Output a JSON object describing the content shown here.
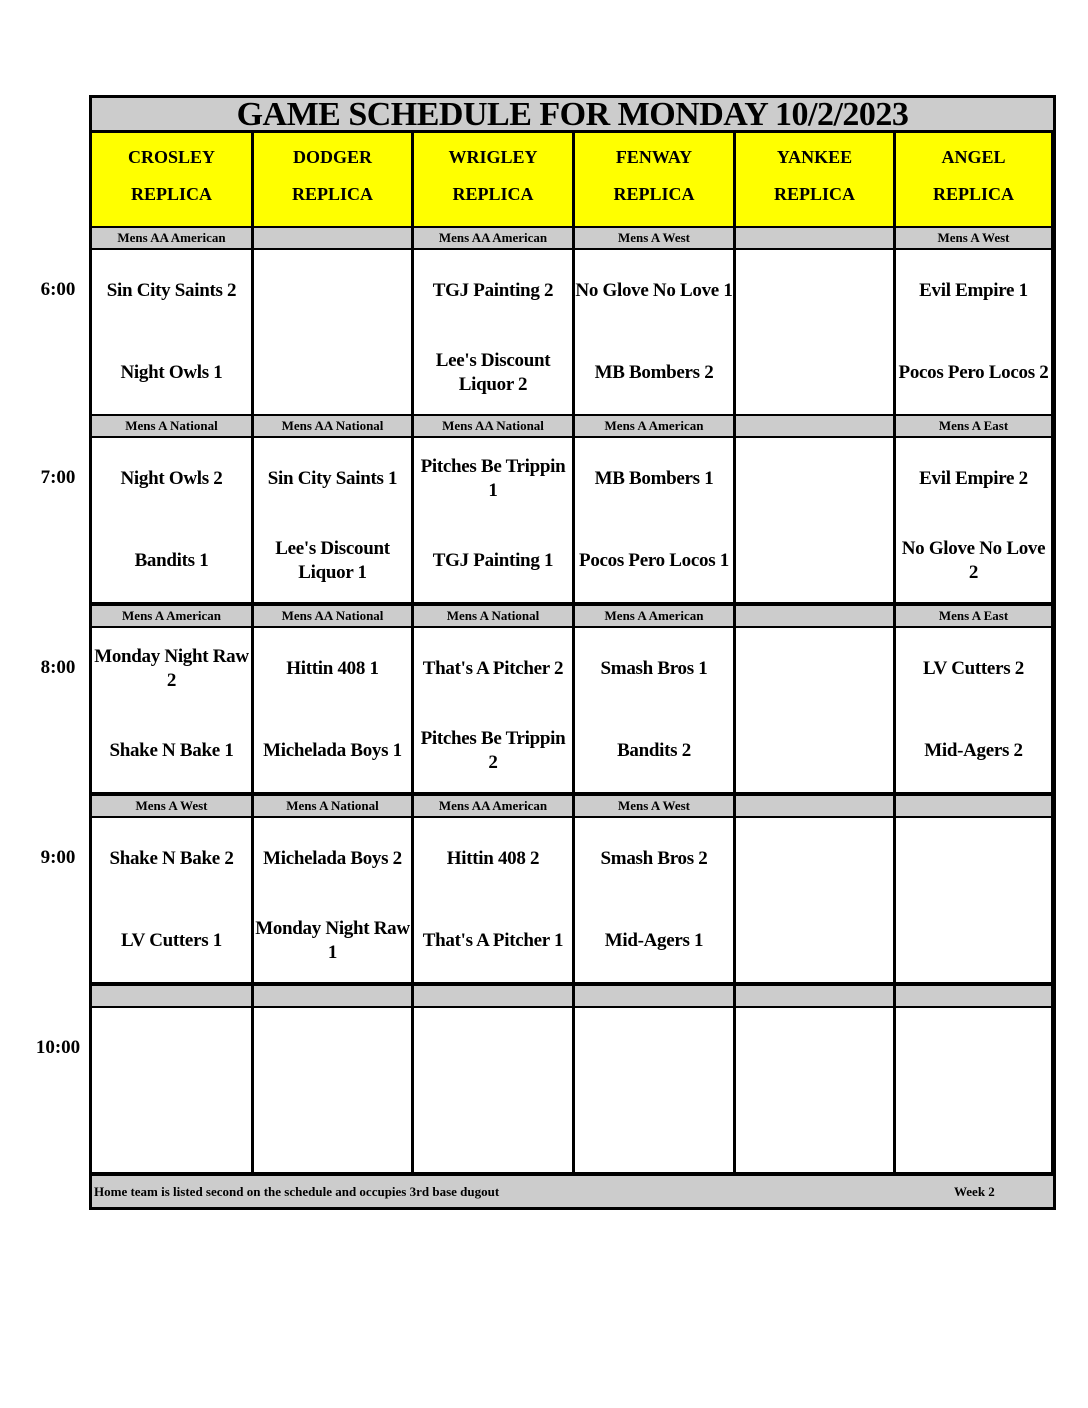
{
  "title": "GAME SCHEDULE FOR MONDAY 10/2/2023",
  "fields": [
    {
      "name": "CROSLEY",
      "sub": "REPLICA"
    },
    {
      "name": "DODGER",
      "sub": "REPLICA"
    },
    {
      "name": "WRIGLEY",
      "sub": "REPLICA"
    },
    {
      "name": "FENWAY",
      "sub": "REPLICA"
    },
    {
      "name": "YANKEE",
      "sub": "REPLICA"
    },
    {
      "name": "ANGEL",
      "sub": "REPLICA"
    }
  ],
  "slots": [
    {
      "time": "6:00",
      "divisions": [
        "Mens AA American",
        "",
        "Mens AA American",
        "Mens A West",
        "",
        "Mens A West"
      ],
      "games": [
        {
          "away": "Sin City Saints 2",
          "home": "Night Owls 1"
        },
        {
          "away": "",
          "home": ""
        },
        {
          "away": "TGJ Painting 2",
          "home": "Lee's Discount Liquor 2"
        },
        {
          "away": "No Glove No Love 1",
          "home": "MB Bombers 2"
        },
        {
          "away": "",
          "home": ""
        },
        {
          "away": "Evil Empire 1",
          "home": "Pocos Pero Locos 2"
        }
      ]
    },
    {
      "time": "7:00",
      "divisions": [
        "Mens A National",
        "Mens AA National",
        "Mens AA National",
        "Mens A American",
        "",
        "Mens A East"
      ],
      "games": [
        {
          "away": "Night Owls 2",
          "home": "Bandits 1"
        },
        {
          "away": "Sin City Saints 1",
          "home": "Lee's Discount Liquor 1"
        },
        {
          "away": "Pitches Be Trippin 1",
          "home": "TGJ Painting 1"
        },
        {
          "away": "MB Bombers 1",
          "home": "Pocos Pero Locos 1"
        },
        {
          "away": "",
          "home": ""
        },
        {
          "away": "Evil Empire 2",
          "home": "No Glove No Love 2"
        }
      ]
    },
    {
      "time": "8:00",
      "divisions": [
        "Mens A American",
        "Mens AA National",
        "Mens A National",
        "Mens A American",
        "",
        "Mens A East"
      ],
      "games": [
        {
          "away": "Monday Night Raw 2",
          "home": "Shake N Bake 1"
        },
        {
          "away": "Hittin 408 1",
          "home": "Michelada Boys 1"
        },
        {
          "away": "That's A Pitcher 2",
          "home": "Pitches Be Trippin 2"
        },
        {
          "away": "Smash Bros 1",
          "home": "Bandits 2"
        },
        {
          "away": "",
          "home": ""
        },
        {
          "away": "LV Cutters 2",
          "home": "Mid-Agers 2"
        }
      ]
    },
    {
      "time": "9:00",
      "divisions": [
        "Mens A West",
        "Mens A National",
        "Mens AA American",
        "Mens A West",
        "",
        ""
      ],
      "games": [
        {
          "away": "Shake N Bake 2",
          "home": "LV Cutters 1"
        },
        {
          "away": "Michelada Boys 2",
          "home": "Monday Night Raw 1"
        },
        {
          "away": "Hittin 408 2",
          "home": "That's A Pitcher 1"
        },
        {
          "away": "Smash Bros 2",
          "home": "Mid-Agers 1"
        },
        {
          "away": "",
          "home": ""
        },
        {
          "away": "",
          "home": ""
        }
      ]
    },
    {
      "time": "10:00",
      "divisions": [
        "",
        "",
        "",
        "",
        "",
        ""
      ],
      "games": [
        {
          "away": "",
          "home": ""
        },
        {
          "away": "",
          "home": ""
        },
        {
          "away": "",
          "home": ""
        },
        {
          "away": "",
          "home": ""
        },
        {
          "away": "",
          "home": ""
        },
        {
          "away": "",
          "home": ""
        }
      ]
    }
  ],
  "footer": {
    "note": "Home team is listed second on the schedule and occupies 3rd base dugout",
    "week": "Week 2"
  },
  "colors": {
    "field_header": "#ffff00",
    "band": "#cccccc",
    "border": "#000000"
  }
}
